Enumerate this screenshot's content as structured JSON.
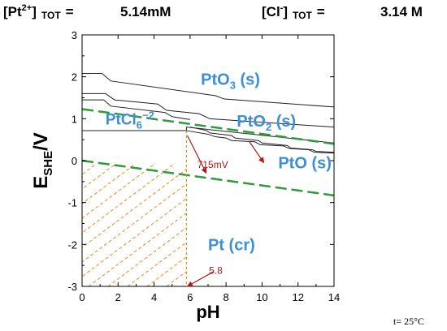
{
  "header": {
    "pt_label": "[Pt",
    "pt_sup": "2+",
    "pt_close": "]",
    "pt_sub": "TOT",
    "pt_eq": "=",
    "pt_value": "5.14mM",
    "cl_label": "[Cl",
    "cl_sup": "-",
    "cl_close": "]",
    "cl_sub": "TOT",
    "cl_eq": "=",
    "cl_value": "3.14 M"
  },
  "footer": {
    "temperature": "t= 25°C"
  },
  "chart_data": {
    "type": "line",
    "xlabel": "pH",
    "ylabel": "E",
    "ylabel_sub": "SHE",
    "ylabel_unit": "/V",
    "xlim": [
      0,
      14
    ],
    "ylim": [
      -3,
      3
    ],
    "x_ticks": [
      "0",
      "2",
      "4",
      "6",
      "8",
      "10",
      "12",
      "14"
    ],
    "y_ticks": [
      "3",
      "2",
      "1",
      "0",
      "-1",
      "-2",
      "-3"
    ],
    "x_tick_values": [
      0,
      2,
      4,
      6,
      8,
      10,
      12,
      14
    ],
    "y_tick_values": [
      3,
      2,
      1,
      0,
      -1,
      -2,
      -3
    ],
    "grid": false,
    "regions": [
      {
        "name": "PtO3 (s)",
        "base": "PtO",
        "sub": "3",
        "suffix": " (s)",
        "x": 6.6,
        "y": 1.95,
        "color": "#3d8fd6"
      },
      {
        "name": "PtO2 (s)",
        "base": "PtO",
        "sub": "2",
        "suffix": " (s)",
        "x": 8.6,
        "y": 0.95,
        "color": "#3d8fd6"
      },
      {
        "name": "PtO (s)",
        "base": "PtO (s)",
        "sub": "",
        "suffix": "",
        "x": 10.9,
        "y": -0.05,
        "color": "#3d8fd6"
      },
      {
        "name": "Pt (cr)",
        "base": "Pt (cr)",
        "sub": "",
        "suffix": "",
        "x": 7.0,
        "y": -2.0,
        "color": "#3d8fd6"
      },
      {
        "name": "PtCl6-2",
        "base": "PtCl",
        "sub": "6",
        "sup": "−2",
        "suffix": "",
        "x": 1.3,
        "y": 1.0,
        "color": "#c62828"
      }
    ],
    "annotations": [
      {
        "text": "715mV",
        "x": 6.4,
        "y": -0.08
      },
      {
        "text": "5.8",
        "x": 7.05,
        "y": -2.6
      }
    ],
    "series": [
      {
        "style": "solid-black",
        "x": [
          0,
          1.1,
          1.6,
          7.4,
          7.9,
          14
        ],
        "y": [
          2.08,
          2.08,
          1.9,
          1.55,
          1.47,
          1.28
        ]
      },
      {
        "style": "solid-black",
        "x": [
          0,
          1.3,
          1.8,
          4.2,
          4.7,
          6.5,
          7.1,
          14
        ],
        "y": [
          1.6,
          1.6,
          1.45,
          1.35,
          1.2,
          1.12,
          1.0,
          0.8
        ]
      },
      {
        "style": "solid-black",
        "x": [
          0,
          1.2,
          1.6,
          4.6,
          5.0,
          6.0
        ],
        "y": [
          1.45,
          1.45,
          1.3,
          1.15,
          1.05,
          0.98
        ]
      },
      {
        "style": "solid-black",
        "x": [
          0,
          5.8,
          5.8,
          14
        ],
        "y": [
          0.715,
          0.715,
          0.8,
          0.42
        ]
      },
      {
        "style": "solid-black",
        "x": [
          5.8,
          7.0,
          7.4,
          8.0,
          8.3,
          9.6,
          9.9,
          11.2,
          11.5,
          12.6,
          12.9,
          14
        ],
        "y": [
          0.715,
          0.63,
          0.57,
          0.54,
          0.48,
          0.45,
          0.38,
          0.35,
          0.29,
          0.26,
          0.2,
          0.18
        ]
      },
      {
        "style": "solid-black",
        "x": [
          6.0,
          6.9,
          7.1,
          8.3,
          8.5,
          9.8,
          10.0,
          11.4,
          11.6,
          12.8,
          13.0,
          14
        ],
        "y": [
          0.8,
          0.72,
          0.66,
          0.6,
          0.54,
          0.48,
          0.42,
          0.36,
          0.3,
          0.26,
          0.22,
          0.2
        ]
      },
      {
        "style": "dashed-green",
        "x": [
          0,
          14
        ],
        "y": [
          1.23,
          0.4
        ]
      },
      {
        "style": "dashed-green",
        "x": [
          0,
          14
        ],
        "y": [
          0.0,
          -0.83
        ]
      },
      {
        "style": "dotted-orange",
        "x": [
          5.8,
          5.8
        ],
        "y": [
          0.715,
          -3.0
        ]
      }
    ],
    "hatch_region": {
      "x_max": 5.8,
      "y_top": 0.715,
      "y_bottom": -3.0,
      "color": "#e88a1a"
    }
  }
}
